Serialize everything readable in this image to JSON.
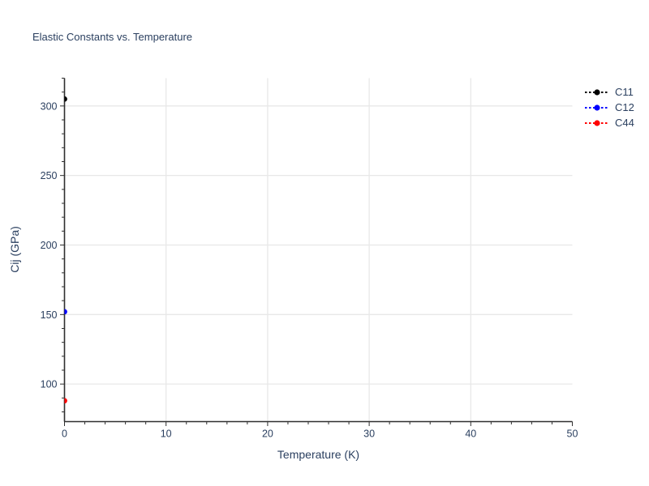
{
  "page": {
    "background": "#ffffff"
  },
  "colors": {
    "text": "#2a3f5f",
    "grid": "#e8e8e8",
    "axis": "#2f2f2f",
    "background": "#ffffff"
  },
  "chart_data": {
    "type": "scatter",
    "title": "Elastic Constants vs. Temperature",
    "xlabel": "Temperature (K)",
    "ylabel": "Cij (GPa)",
    "xlim": [
      0,
      50
    ],
    "ylim": [
      73,
      320
    ],
    "x_ticks": [
      0,
      10,
      20,
      30,
      40,
      50
    ],
    "x_minor_step": 2,
    "y_ticks": [
      100,
      150,
      200,
      250,
      300
    ],
    "y_minor_step": 10,
    "grid": true,
    "legend_position": "top-right",
    "series": [
      {
        "name": "C11",
        "color": "#000000",
        "line_style": "dashed",
        "marker": "circle",
        "x": [
          0
        ],
        "y": [
          305
        ]
      },
      {
        "name": "C12",
        "color": "#0000ff",
        "line_style": "dashed",
        "marker": "circle",
        "x": [
          0
        ],
        "y": [
          152
        ]
      },
      {
        "name": "C44",
        "color": "#ff0000",
        "line_style": "dashed",
        "marker": "circle",
        "x": [
          0
        ],
        "y": [
          88
        ]
      }
    ]
  }
}
